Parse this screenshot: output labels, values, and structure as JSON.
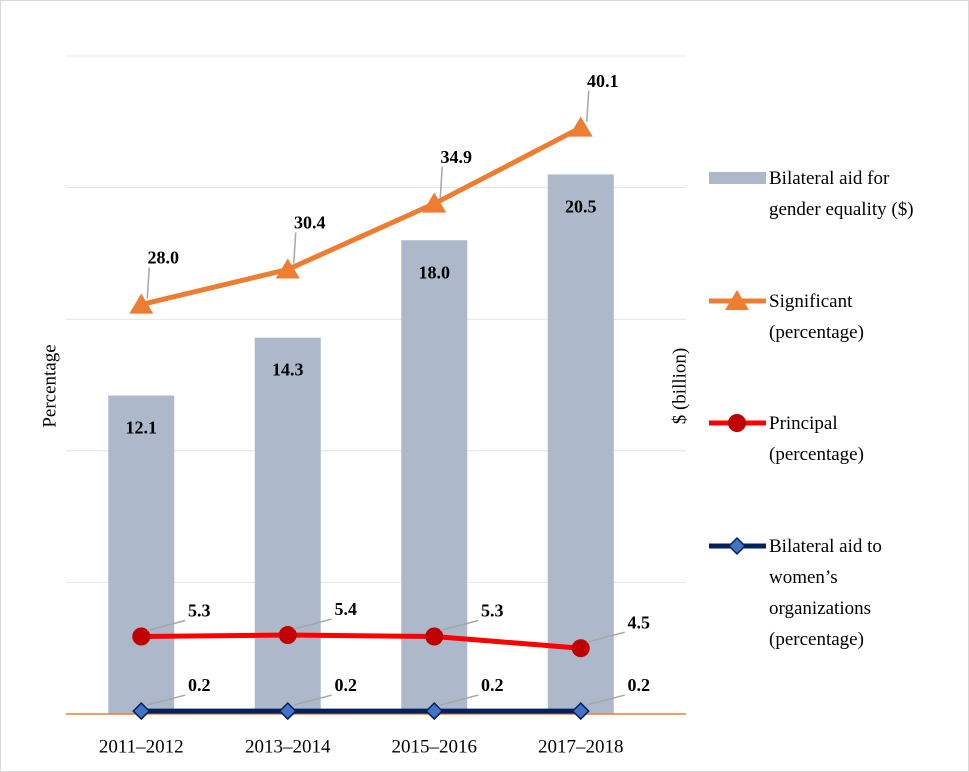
{
  "chart_data": {
    "type": "combo",
    "categories": [
      "2011–2012",
      "2013–2014",
      "2015–2016",
      "2017–2018"
    ],
    "ylabel": "Percentage",
    "y2label": "$ (billion)",
    "ylim": [
      0,
      45
    ],
    "y2lim": [
      0,
      25
    ],
    "y2ticks": [
      0,
      5,
      10,
      15,
      20,
      25
    ],
    "grid": true,
    "legend": "right",
    "series": [
      {
        "name": "Bilateral aid for gender equality ($)",
        "type": "bar",
        "axis": "y2",
        "color": "#adb9ca",
        "values": [
          12.1,
          14.3,
          18.0,
          20.5
        ],
        "value_labels": [
          "12.1",
          "14.3",
          "18.0",
          "20.5"
        ]
      },
      {
        "name": "Significant (percentage)",
        "type": "line",
        "color": "#ed7d31",
        "marker": "triangle",
        "marker_color": "#ed7d31",
        "values": [
          28.0,
          30.4,
          34.9,
          40.1
        ],
        "value_labels": [
          "28.0",
          "30.4",
          "34.9",
          "40.1"
        ]
      },
      {
        "name": "Principal (percentage)",
        "type": "line",
        "color": "#ff0000",
        "marker": "circle",
        "marker_color": "#c00000",
        "values": [
          5.3,
          5.4,
          5.3,
          4.5
        ],
        "value_labels": [
          "5.3",
          "5.4",
          "5.3",
          "4.5"
        ]
      },
      {
        "name": "Bilateral aid to women’s organizations (percentage)",
        "type": "line",
        "color": "#002060",
        "marker": "diamond",
        "marker_color": "#4472c4",
        "values": [
          0.2,
          0.2,
          0.2,
          0.2
        ],
        "value_labels": [
          "0.2",
          "0.2",
          "0.2",
          "0.2"
        ]
      }
    ]
  }
}
